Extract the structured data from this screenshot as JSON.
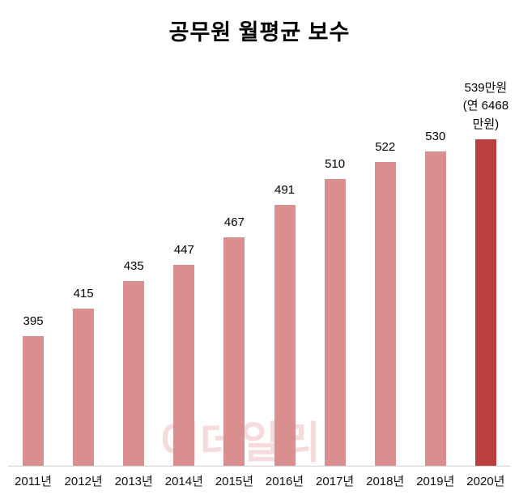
{
  "title": "공무원 월평균 보수",
  "watermark": "이데일리",
  "chart_data": {
    "type": "bar",
    "title": "공무원 월평균 보수",
    "categories": [
      "2011년",
      "2012년",
      "2013년",
      "2014년",
      "2015년",
      "2016년",
      "2017년",
      "2018년",
      "2019년",
      "2020년"
    ],
    "values": [
      395,
      415,
      435,
      447,
      467,
      491,
      510,
      522,
      530,
      539
    ],
    "bar_labels": [
      "395",
      "415",
      "435",
      "447",
      "467",
      "491",
      "510",
      "522",
      "530",
      "539만원\n(연 6468만원)"
    ],
    "unit": "만원",
    "highlight_index": 9,
    "highlight_annotation": [
      "539만원",
      "(연 6468만원)"
    ],
    "ylim": [
      300,
      550
    ],
    "grid": false,
    "legend": false,
    "xlabel": "",
    "ylabel": "",
    "bar_color": "#d98f8f",
    "highlight_color": "#b9403f",
    "axis_line_color": "#d0d0d0",
    "label_color": "#000000"
  }
}
